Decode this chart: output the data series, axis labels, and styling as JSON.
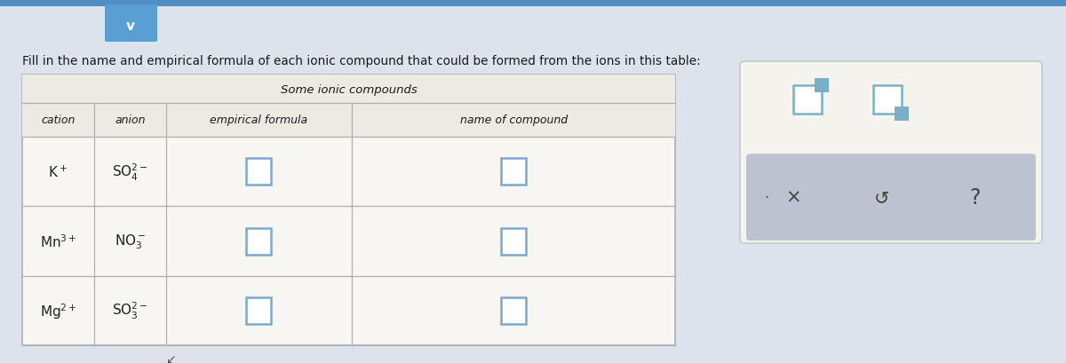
{
  "title_text": "Fill in the name and empirical formula of each ionic compound that could be formed from the ions in this table:",
  "table_title": "Some ionic compounds",
  "headers": [
    "cation",
    "anion",
    "empirical formula",
    "name of compound"
  ],
  "rows": [
    {
      "cation": "K$^+$",
      "anion": "SO$_4^{2-}$"
    },
    {
      "cation": "Mn$^{3+}$",
      "anion": "NO$_3^-$"
    },
    {
      "cation": "Mg$^{2+}$",
      "anion": "SO$_3^{2-}$"
    }
  ],
  "bg_color": "#dde3ec",
  "table_bg": "#f7f6f2",
  "header_row_bg": "#edeae3",
  "cell_bg": "#f7f6f2",
  "input_box_color": "#7ba8cc",
  "grid_color": "#b0b0b0",
  "title_color": "#1a1a1a",
  "header_text_color": "#1a1a1a",
  "cell_text_color": "#222222",
  "popup_bg": "#f5f3ee",
  "popup_border": "#c8c8c8",
  "popup_bottom_bg": "#bcc2d0",
  "top_strip_color": "#4e8ec5",
  "chevron_bg": "#5a9fd4",
  "icon_outline": "#7aafc8",
  "icon_fill": "#7aafc8"
}
